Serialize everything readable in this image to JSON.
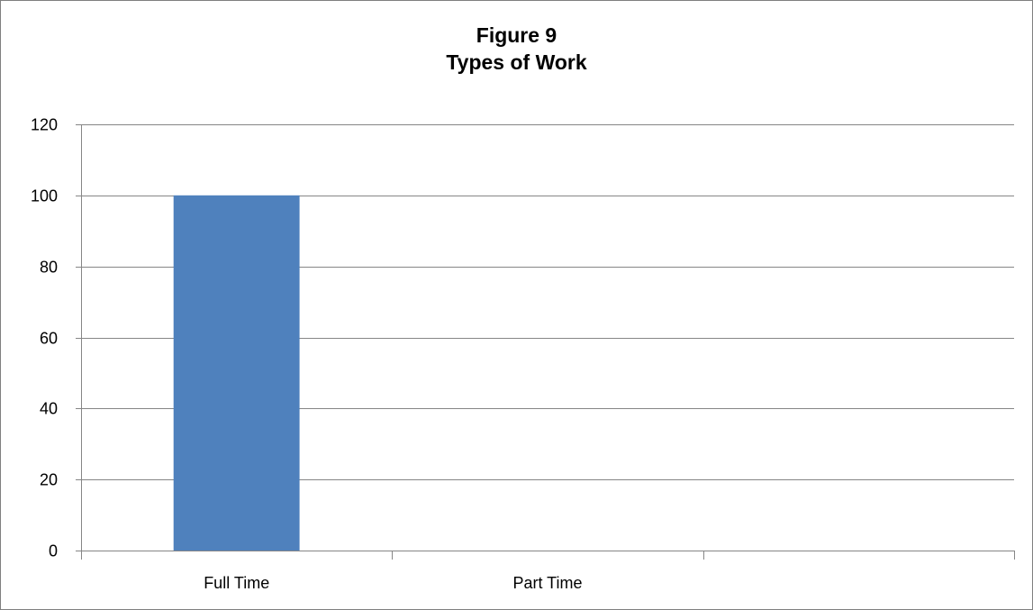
{
  "chart_data": {
    "type": "bar",
    "title_lines": [
      "Figure 9",
      "Types of Work"
    ],
    "categories": [
      "Full Time",
      "Part Time"
    ],
    "series": [
      {
        "values": [
          100,
          0
        ]
      }
    ],
    "ylim": [
      0,
      120
    ],
    "yticks": [
      0,
      20,
      40,
      60,
      80,
      100,
      120
    ],
    "grid": true,
    "legend": "none",
    "bar_color": "#4f81bd",
    "grid_color": "#868686",
    "axis_color": "#868686",
    "category_slots": 3
  }
}
